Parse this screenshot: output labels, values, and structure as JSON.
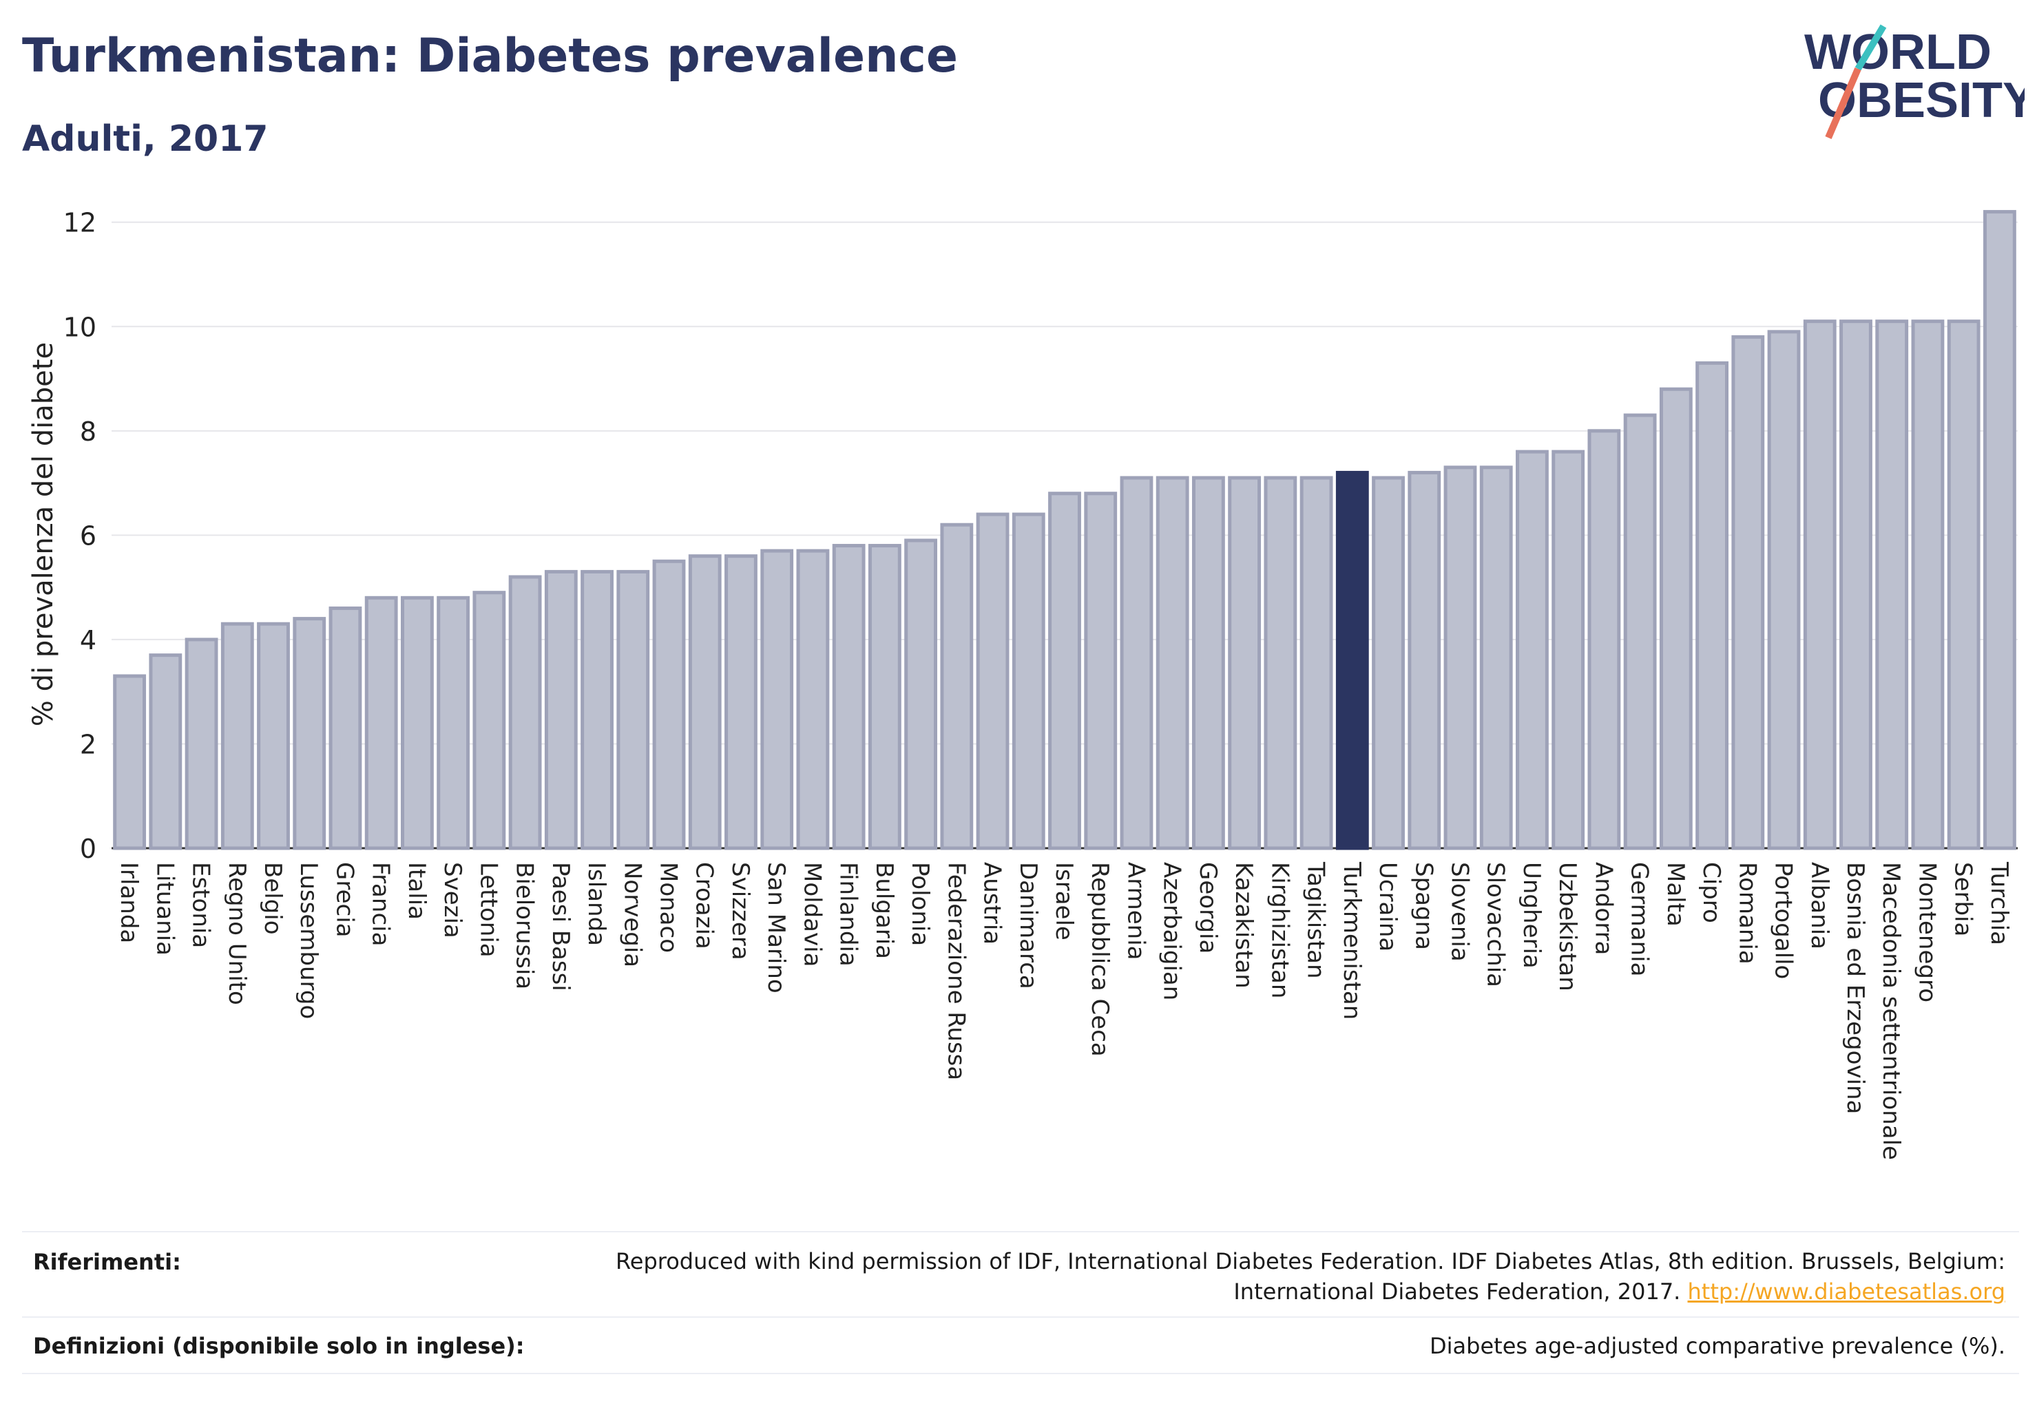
{
  "header": {
    "title": "Turkmenistan: Diabetes prevalence",
    "subtitle": "Adulti, 2017"
  },
  "logo": {
    "line1": "WORLD",
    "line2": "OBESITY",
    "colors": [
      "#2b3561",
      "#3cc0c0",
      "#e8715a"
    ]
  },
  "chart_data": {
    "type": "bar",
    "ylabel": "% di prevalenza del diabete",
    "ylim": [
      0,
      12
    ],
    "yticks": [
      0,
      2,
      4,
      6,
      8,
      10,
      12
    ],
    "grid": true,
    "highlight": "Turkmenistan",
    "colors": {
      "bar": "#bcc0cf",
      "bar_stroke": "#9ea2b8",
      "highlight": "#2b3561"
    },
    "categories": [
      "Irlanda",
      "Lituania",
      "Estonia",
      "Regno Unito",
      "Belgio",
      "Lussemburgo",
      "Grecia",
      "Francia",
      "Italia",
      "Svezia",
      "Lettonia",
      "Bielorussia",
      "Paesi Bassi",
      "Islanda",
      "Norvegia",
      "Monaco",
      "Croazia",
      "Svizzera",
      "San Marino",
      "Moldavia",
      "Finlandia",
      "Bulgaria",
      "Polonia",
      "Federazione Russa",
      "Austria",
      "Danimarca",
      "Israele",
      "Repubblica Ceca",
      "Armenia",
      "Azerbaigian",
      "Georgia",
      "Kazakistan",
      "Kirghizistan",
      "Tagikistan",
      "Turkmenistan",
      "Ucraina",
      "Spagna",
      "Slovenia",
      "Slovacchia",
      "Ungheria",
      "Uzbekistan",
      "Andorra",
      "Germania",
      "Malta",
      "Cipro",
      "Romania",
      "Portogallo",
      "Albania",
      "Bosnia ed Erzegovina",
      "Macedonia settentrionale",
      "Montenegro",
      "Serbia",
      "Turchia"
    ],
    "values": [
      3.3,
      3.7,
      4.0,
      4.3,
      4.3,
      4.4,
      4.6,
      4.8,
      4.8,
      4.8,
      4.9,
      5.2,
      5.3,
      5.3,
      5.3,
      5.5,
      5.6,
      5.6,
      5.7,
      5.7,
      5.8,
      5.8,
      5.9,
      6.2,
      6.4,
      6.4,
      6.8,
      6.8,
      7.1,
      7.1,
      7.1,
      7.1,
      7.1,
      7.1,
      7.2,
      7.1,
      7.2,
      7.3,
      7.3,
      7.6,
      7.6,
      8.0,
      8.3,
      8.8,
      9.3,
      9.8,
      9.9,
      10.1,
      10.1,
      10.1,
      10.1,
      10.1,
      12.2
    ]
  },
  "footer": {
    "references_label": "Riferimenti:",
    "references_line1": "Reproduced with kind permission of IDF, International Diabetes Federation. IDF Diabetes Atlas, 8th edition. Brussels, Belgium:",
    "references_line2": "International Diabetes Federation, 2017.",
    "references_link": "http://www.diabetesatlas.org",
    "definitions_label": "Definizioni (disponibile solo in inglese):",
    "definitions_text": "Diabetes age-adjusted comparative prevalence (%)."
  }
}
